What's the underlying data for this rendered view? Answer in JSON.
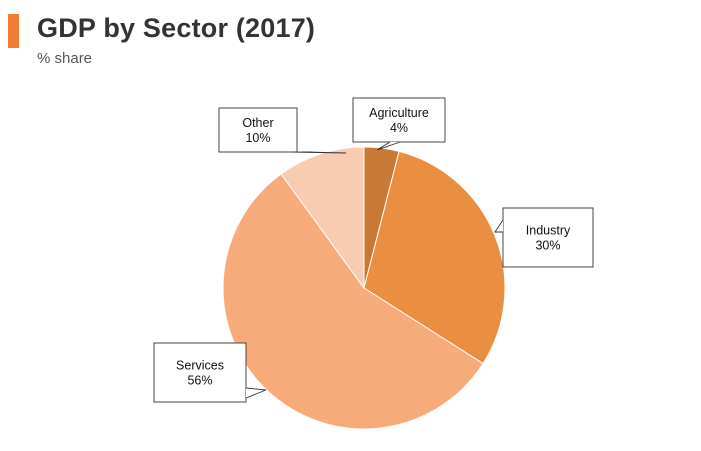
{
  "header": {
    "title": "GDP by Sector (2017)",
    "subtitle": "% share",
    "accent_color": "#f07d2f"
  },
  "chart_data": {
    "type": "pie",
    "title": "GDP by Sector (2017)",
    "subtitle": "% share",
    "start": "12 o'clock",
    "direction": "clockwise",
    "slices": [
      {
        "label": "Agriculture",
        "value": 4,
        "display": "4%",
        "color": "#c87935"
      },
      {
        "label": "Industry",
        "value": 30,
        "display": "30%",
        "color": "#ea8e42"
      },
      {
        "label": "Services",
        "value": 56,
        "display": "56%",
        "color": "#f7ab7a"
      },
      {
        "label": "Other",
        "value": 10,
        "display": "10%",
        "color": "#f8cbb3"
      }
    ]
  }
}
